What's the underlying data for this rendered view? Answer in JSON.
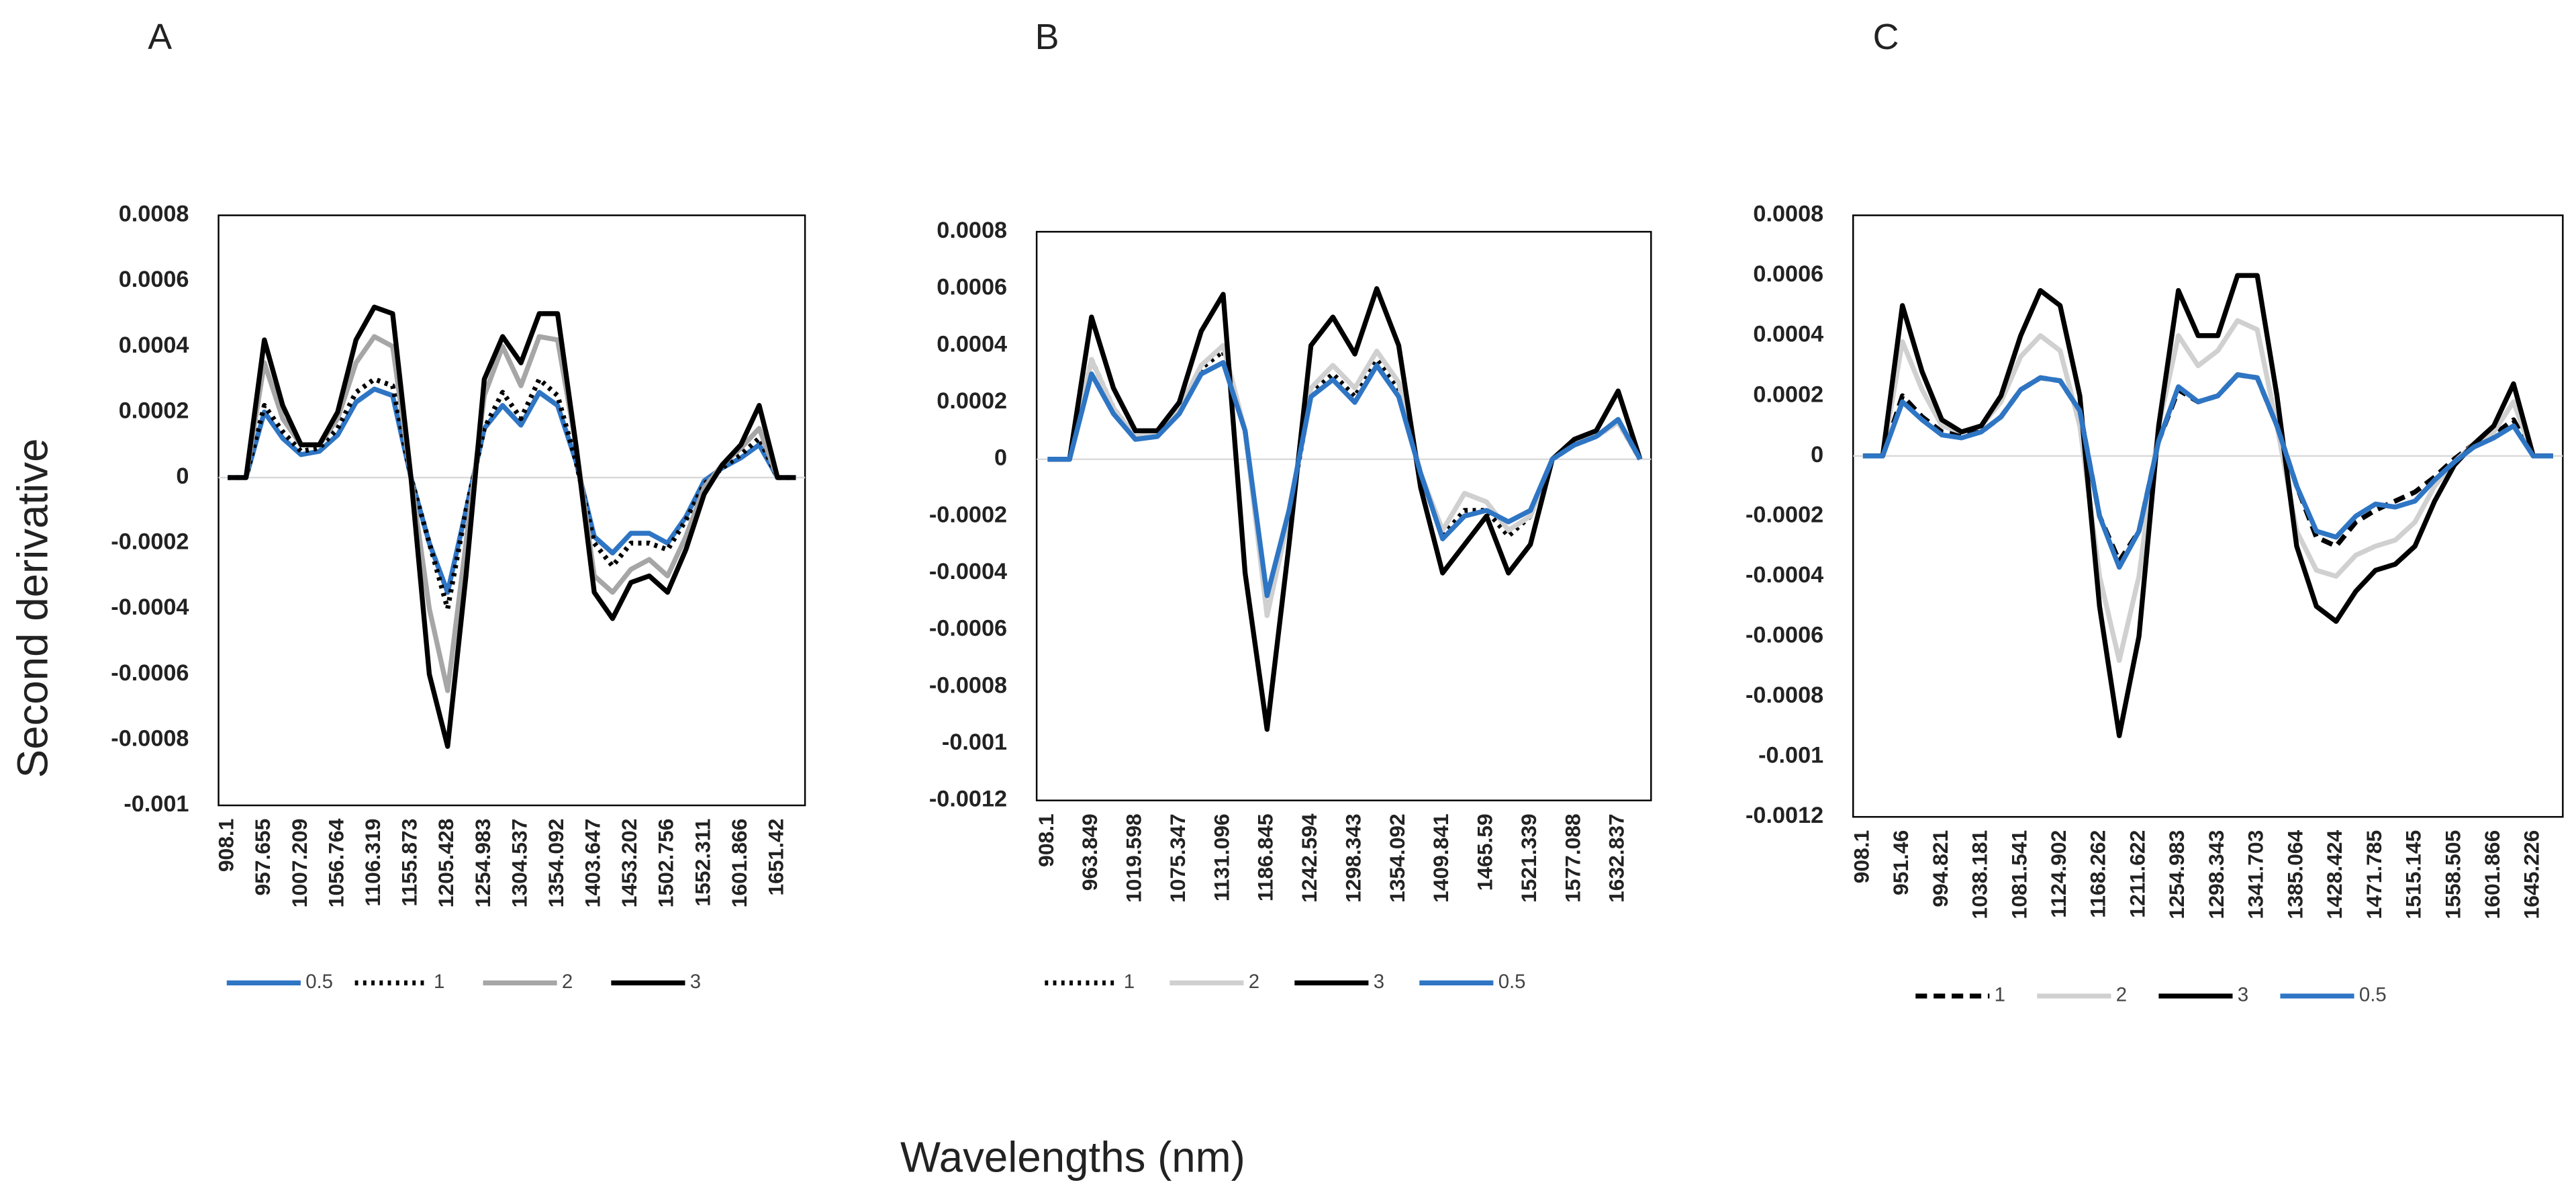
{
  "ylabel": "Second derivative",
  "xlabel": "Wavelengths (nm)",
  "chart_data": [
    {
      "type": "line",
      "title": "A",
      "categories": [
        "908.1",
        null,
        "957.655",
        null,
        "1007.209",
        null,
        "1056.764",
        null,
        "1106.319",
        null,
        "1155.873",
        null,
        "1205.428",
        null,
        "1254.983",
        null,
        "1304.537",
        null,
        "1354.092",
        null,
        "1403.647",
        null,
        "1453.202",
        null,
        "1502.756",
        null,
        "1552.311",
        null,
        "1601.866",
        null,
        "1651.42",
        null
      ],
      "ylim": [
        -0.001,
        0.0008
      ],
      "yticks": [
        -0.001,
        -0.0008,
        -0.0006,
        -0.0004,
        -0.0002,
        0,
        0.0002,
        0.0004,
        0.0006,
        0.0008
      ],
      "legend": "bottom",
      "series": [
        {
          "name": "0.5",
          "color": "#2e75c4",
          "dash": "solid",
          "values": [
            0,
            0,
            0.0002,
            0.00012,
            7e-05,
            8e-05,
            0.00013,
            0.00023,
            0.00027,
            0.00025,
            0,
            -0.0002,
            -0.00035,
            -0.0001,
            0.00015,
            0.00022,
            0.00016,
            0.00026,
            0.00022,
            5e-05,
            -0.00018,
            -0.00023,
            -0.00017,
            -0.00017,
            -0.0002,
            -0.00012,
            -1e-05,
            3e-05,
            6e-05,
            0.0001,
            0,
            0
          ]
        },
        {
          "name": "1",
          "color": "#000000",
          "dash": "dot",
          "values": [
            0,
            0,
            0.00022,
            0.00014,
            8e-05,
            9e-05,
            0.00015,
            0.00026,
            0.0003,
            0.00028,
            0,
            -0.0002,
            -0.0004,
            -0.0001,
            0.00015,
            0.00026,
            0.00018,
            0.0003,
            0.00025,
            5e-05,
            -0.0002,
            -0.00027,
            -0.0002,
            -0.0002,
            -0.00022,
            -0.00013,
            -2e-05,
            3e-05,
            7e-05,
            0.00012,
            0,
            0
          ]
        },
        {
          "name": "2",
          "color": "#a6a6a6",
          "dash": "solid",
          "values": [
            0,
            0,
            0.00035,
            0.00018,
            0.0001,
            0.0001,
            0.00018,
            0.00035,
            0.00043,
            0.0004,
            0,
            -0.0004,
            -0.00065,
            -0.0002,
            0.00025,
            0.0004,
            0.00028,
            0.00043,
            0.00042,
            0.0001,
            -0.0003,
            -0.00035,
            -0.00028,
            -0.00025,
            -0.0003,
            -0.00018,
            -3e-05,
            4e-05,
            9e-05,
            0.00015,
            0,
            0
          ]
        },
        {
          "name": "3",
          "color": "#000000",
          "dash": "solid",
          "values": [
            0,
            0,
            0.00042,
            0.00022,
            0.0001,
            0.0001,
            0.0002,
            0.00042,
            0.00052,
            0.0005,
            0,
            -0.0006,
            -0.00082,
            -0.0003,
            0.0003,
            0.00043,
            0.00035,
            0.0005,
            0.0005,
            0.0001,
            -0.00035,
            -0.00043,
            -0.00032,
            -0.0003,
            -0.00035,
            -0.00022,
            -5e-05,
            4e-05,
            0.0001,
            0.00022,
            0,
            0
          ]
        }
      ]
    },
    {
      "type": "line",
      "title": "B",
      "categories": [
        "908.1",
        null,
        "963.849",
        null,
        "1019.598",
        null,
        "1075.347",
        null,
        "1131.096",
        null,
        "1186.845",
        null,
        "1242.594",
        null,
        "1298.343",
        null,
        "1354.092",
        null,
        "1409.841",
        null,
        "1465.59",
        null,
        "1521.339",
        null,
        "1577.088",
        null,
        "1632.837",
        null
      ],
      "ylim": [
        -0.0012,
        0.0008
      ],
      "yticks": [
        -0.0012,
        -0.001,
        -0.0008,
        -0.0006,
        -0.0004,
        -0.0002,
        0,
        0.0002,
        0.0004,
        0.0006,
        0.0008
      ],
      "legend": "bottom",
      "series": [
        {
          "name": "1",
          "color": "#000000",
          "dash": "dot",
          "values": [
            0,
            0,
            0.00035,
            0.00018,
            8e-05,
            8e-05,
            0.00017,
            0.00032,
            0.00038,
            0.0001,
            -0.00052,
            -0.0002,
            0.00023,
            0.0003,
            0.00022,
            0.00035,
            0.00025,
            -5e-05,
            -0.00027,
            -0.00018,
            -0.00018,
            -0.00027,
            -0.0002,
            0,
            5e-05,
            8e-05,
            0.00013,
            0
          ]
        },
        {
          "name": "2",
          "color": "#d0d0d0",
          "dash": "solid",
          "values": [
            0,
            0,
            0.00035,
            0.00018,
            8e-05,
            9e-05,
            0.00018,
            0.00033,
            0.0004,
            0.0001,
            -0.00055,
            -0.0002,
            0.00025,
            0.00033,
            0.00025,
            0.00038,
            0.00027,
            -5e-05,
            -0.00025,
            -0.00012,
            -0.00015,
            -0.00025,
            -0.0002,
            0,
            5e-05,
            8e-05,
            0.00013,
            0
          ]
        },
        {
          "name": "3",
          "color": "#000000",
          "dash": "solid",
          "values": [
            0,
            0,
            0.0005,
            0.00025,
            0.0001,
            0.0001,
            0.0002,
            0.00045,
            0.00058,
            -0.0004,
            -0.00095,
            -0.0003,
            0.0004,
            0.0005,
            0.00037,
            0.0006,
            0.0004,
            -0.0001,
            -0.0004,
            -0.0003,
            -0.0002,
            -0.0004,
            -0.0003,
            0,
            7e-05,
            0.0001,
            0.00024,
            0
          ]
        },
        {
          "name": "0.5",
          "color": "#2e75c4",
          "dash": "solid",
          "values": [
            0,
            0,
            0.0003,
            0.00016,
            7e-05,
            8e-05,
            0.00016,
            0.0003,
            0.00034,
            0.0001,
            -0.00048,
            -0.00018,
            0.00022,
            0.00028,
            0.0002,
            0.00033,
            0.00022,
            -5e-05,
            -0.00028,
            -0.0002,
            -0.00018,
            -0.00022,
            -0.00018,
            0,
            5e-05,
            8e-05,
            0.00014,
            0
          ]
        }
      ]
    },
    {
      "type": "line",
      "title": "C",
      "categories": [
        "908.1",
        null,
        "951.46",
        null,
        "994.821",
        null,
        "1038.181",
        null,
        "1081.541",
        null,
        "1124.902",
        null,
        "1168.262",
        null,
        "1211.622",
        null,
        "1254.983",
        null,
        "1298.343",
        null,
        "1341.703",
        null,
        "1385.064",
        null,
        "1428.424",
        null,
        "1471.785",
        null,
        "1515.145",
        null,
        "1558.505",
        null,
        "1601.866",
        null,
        "1645.226",
        null
      ],
      "ylim": [
        -0.0012,
        0.0008
      ],
      "yticks": [
        -0.0012,
        -0.001,
        -0.0008,
        -0.0006,
        -0.0004,
        -0.0002,
        0,
        0.0002,
        0.0004,
        0.0006,
        0.0008
      ],
      "legend": "bottom",
      "series": [
        {
          "name": "1",
          "color": "#000000",
          "dash": "dash",
          "values": [
            0,
            0,
            0.0002,
            0.00013,
            8e-05,
            7e-05,
            8e-05,
            0.00013,
            0.00022,
            0.00026,
            0.00025,
            0.00015,
            -0.0002,
            -0.00035,
            -0.00025,
            5e-05,
            0.00022,
            0.00018,
            0.0002,
            0.00027,
            0.00026,
            0.0001,
            -0.0001,
            -0.00027,
            -0.0003,
            -0.00022,
            -0.00018,
            -0.00015,
            -0.00012,
            -7e-05,
            -1e-05,
            4e-05,
            7e-05,
            0.00012,
            0,
            0
          ]
        },
        {
          "name": "2",
          "color": "#d0d0d0",
          "dash": "solid",
          "values": [
            0,
            0,
            0.00038,
            0.00022,
            0.0001,
            8e-05,
            0.0001,
            0.00018,
            0.00033,
            0.0004,
            0.00035,
            0.0001,
            -0.0004,
            -0.00068,
            -0.0004,
            0.0001,
            0.0004,
            0.0003,
            0.00035,
            0.00045,
            0.00042,
            0.0001,
            -0.00025,
            -0.00038,
            -0.0004,
            -0.00033,
            -0.0003,
            -0.00028,
            -0.00022,
            -0.0001,
            -2e-05,
            4e-05,
            8e-05,
            0.00018,
            0,
            0
          ]
        },
        {
          "name": "3",
          "color": "#000000",
          "dash": "solid",
          "values": [
            0,
            0,
            0.0005,
            0.00028,
            0.00012,
            8e-05,
            0.0001,
            0.0002,
            0.0004,
            0.00055,
            0.0005,
            0.0002,
            -0.0005,
            -0.00093,
            -0.0006,
            0.0001,
            0.00055,
            0.0004,
            0.0004,
            0.0006,
            0.0006,
            0.0002,
            -0.0003,
            -0.0005,
            -0.00055,
            -0.00045,
            -0.00038,
            -0.00036,
            -0.0003,
            -0.00015,
            -3e-05,
            4e-05,
            0.0001,
            0.00024,
            0,
            0
          ]
        },
        {
          "name": "0.5",
          "color": "#2e75c4",
          "dash": "solid",
          "values": [
            0,
            0,
            0.00018,
            0.00012,
            7e-05,
            6e-05,
            8e-05,
            0.00013,
            0.00022,
            0.00026,
            0.00025,
            0.00015,
            -0.0002,
            -0.00037,
            -0.00025,
            5e-05,
            0.00023,
            0.00018,
            0.0002,
            0.00027,
            0.00026,
            0.0001,
            -0.0001,
            -0.00025,
            -0.00027,
            -0.0002,
            -0.00016,
            -0.00017,
            -0.00015,
            -8e-05,
            -2e-05,
            3e-05,
            6e-05,
            0.0001,
            0,
            0
          ]
        }
      ]
    }
  ]
}
